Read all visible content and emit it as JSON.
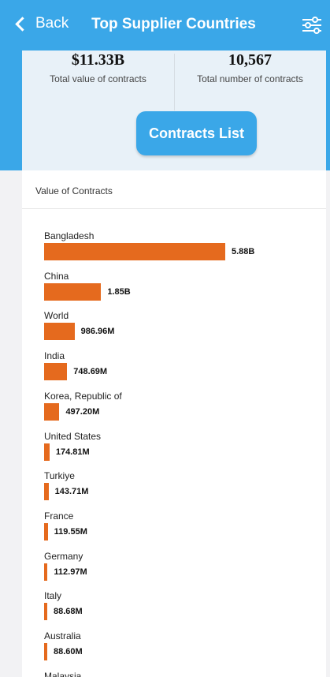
{
  "header": {
    "back_label": "Back",
    "title": "Top Supplier Countries"
  },
  "summary": {
    "total_value": "$11.33B",
    "total_value_label": "Total value of contracts",
    "total_number": "10,567",
    "total_number_label": "Total number of contracts",
    "button_label": "Contracts List"
  },
  "panel": {
    "title": "Value of Contracts"
  },
  "colors": {
    "accent": "#3aa7e8",
    "bar": "#e56a1e"
  },
  "chart_data": {
    "type": "bar",
    "orientation": "horizontal",
    "categories": [
      "Bangladesh",
      "China",
      "World",
      "India",
      "Korea, Republic of",
      "United States",
      "Turkiye",
      "France",
      "Germany",
      "Italy",
      "Australia",
      "Malaysia"
    ],
    "values": [
      5880000000,
      1850000000,
      986960000,
      748690000,
      497200000,
      174810000,
      143710000,
      119550000,
      112970000,
      88680000,
      88600000,
      null
    ],
    "value_labels": [
      "5.88B",
      "1.85B",
      "986.96M",
      "748.69M",
      "497.20M",
      "174.81M",
      "143.71M",
      "119.55M",
      "112.97M",
      "88.68M",
      "88.60M",
      ""
    ]
  }
}
